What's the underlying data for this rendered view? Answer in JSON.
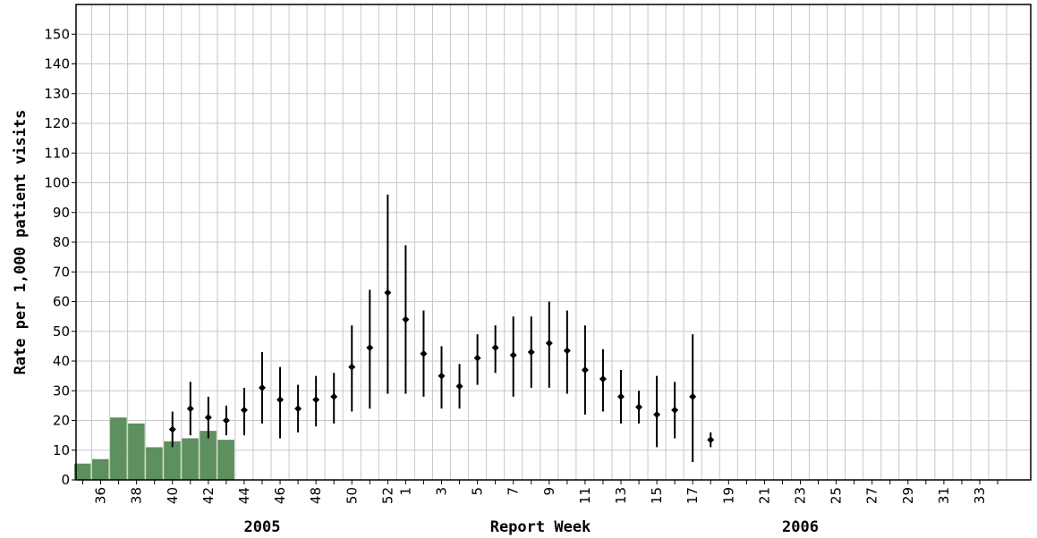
{
  "chart_data": {
    "type": "bar",
    "title": "",
    "xlabel": "Report Week",
    "ylabel": "Rate per 1,000 patient visits",
    "ylim": [
      0,
      160
    ],
    "y_ticks": [
      0,
      10,
      20,
      30,
      40,
      50,
      60,
      70,
      80,
      90,
      100,
      110,
      120,
      130,
      140,
      150
    ],
    "year_labels": [
      {
        "label": "2005",
        "week_index": 10
      },
      {
        "label": "2006",
        "week_index": 40
      }
    ],
    "x_tick_labels": [
      "36",
      "38",
      "40",
      "42",
      "44",
      "46",
      "48",
      "50",
      "52",
      "1",
      "3",
      "5",
      "7",
      "9",
      "11",
      "13",
      "15",
      "17",
      "19",
      "21",
      "23",
      "25",
      "27",
      "29",
      "31",
      "33"
    ],
    "weeks": [
      "35",
      "36",
      "37",
      "38",
      "39",
      "40",
      "41",
      "42",
      "43",
      "44",
      "45",
      "46",
      "47",
      "48",
      "49",
      "50",
      "51",
      "52",
      "1",
      "2",
      "3",
      "4",
      "5",
      "6",
      "7",
      "8",
      "9",
      "10",
      "11",
      "12",
      "13",
      "14",
      "15",
      "16",
      "17",
      "18",
      "19",
      "20",
      "21",
      "22",
      "23",
      "24",
      "25",
      "26",
      "27",
      "28",
      "29",
      "30",
      "31",
      "32",
      "33",
      "34"
    ],
    "grid": true,
    "colors": {
      "bar": "#5e8f5e",
      "point": "#000000",
      "grid": "#c8c8c8"
    },
    "series": [
      {
        "type": "bar",
        "weeks": [
          "35",
          "36",
          "37",
          "38",
          "39",
          "40",
          "41",
          "42",
          "43"
        ],
        "values": [
          5.5,
          7,
          21,
          19,
          11,
          13,
          14,
          16.5,
          13.5
        ]
      },
      {
        "type": "point-errorbar",
        "points": [
          {
            "week": "40",
            "value": 17,
            "low": 11,
            "high": 23
          },
          {
            "week": "41",
            "value": 24,
            "low": 15,
            "high": 33
          },
          {
            "week": "42",
            "value": 21,
            "low": 14,
            "high": 28
          },
          {
            "week": "43",
            "value": 20,
            "low": 15,
            "high": 25
          },
          {
            "week": "44",
            "value": 23.5,
            "low": 15,
            "high": 31
          },
          {
            "week": "45",
            "value": 31,
            "low": 19,
            "high": 43
          },
          {
            "week": "46",
            "value": 27,
            "low": 14,
            "high": 38
          },
          {
            "week": "47",
            "value": 24,
            "low": 16,
            "high": 32
          },
          {
            "week": "48",
            "value": 27,
            "low": 18,
            "high": 35
          },
          {
            "week": "49",
            "value": 28,
            "low": 19,
            "high": 36
          },
          {
            "week": "50",
            "value": 38,
            "low": 23,
            "high": 52
          },
          {
            "week": "51",
            "value": 44.5,
            "low": 24,
            "high": 64
          },
          {
            "week": "52",
            "value": 63,
            "low": 29,
            "high": 96
          },
          {
            "week": "1",
            "value": 54,
            "low": 29,
            "high": 79
          },
          {
            "week": "2",
            "value": 42.5,
            "low": 28,
            "high": 57
          },
          {
            "week": "3",
            "value": 35,
            "low": 24,
            "high": 45
          },
          {
            "week": "4",
            "value": 31.5,
            "low": 24,
            "high": 39
          },
          {
            "week": "5",
            "value": 41,
            "low": 32,
            "high": 49
          },
          {
            "week": "6",
            "value": 44.5,
            "low": 36,
            "high": 52
          },
          {
            "week": "7",
            "value": 42,
            "low": 28,
            "high": 55
          },
          {
            "week": "8",
            "value": 43,
            "low": 31,
            "high": 55
          },
          {
            "week": "9",
            "value": 46,
            "low": 31,
            "high": 60
          },
          {
            "week": "10",
            "value": 43.5,
            "low": 29,
            "high": 57
          },
          {
            "week": "11",
            "value": 37,
            "low": 22,
            "high": 52
          },
          {
            "week": "12",
            "value": 34,
            "low": 23,
            "high": 44
          },
          {
            "week": "13",
            "value": 28,
            "low": 19,
            "high": 37
          },
          {
            "week": "14",
            "value": 24.5,
            "low": 19,
            "high": 30
          },
          {
            "week": "15",
            "value": 22,
            "low": 11,
            "high": 35
          },
          {
            "week": "16",
            "value": 23.5,
            "low": 14,
            "high": 33
          },
          {
            "week": "17",
            "value": 28,
            "low": 6,
            "high": 49
          },
          {
            "week": "18",
            "value": 13.5,
            "low": 11,
            "high": 16
          }
        ]
      }
    ]
  }
}
